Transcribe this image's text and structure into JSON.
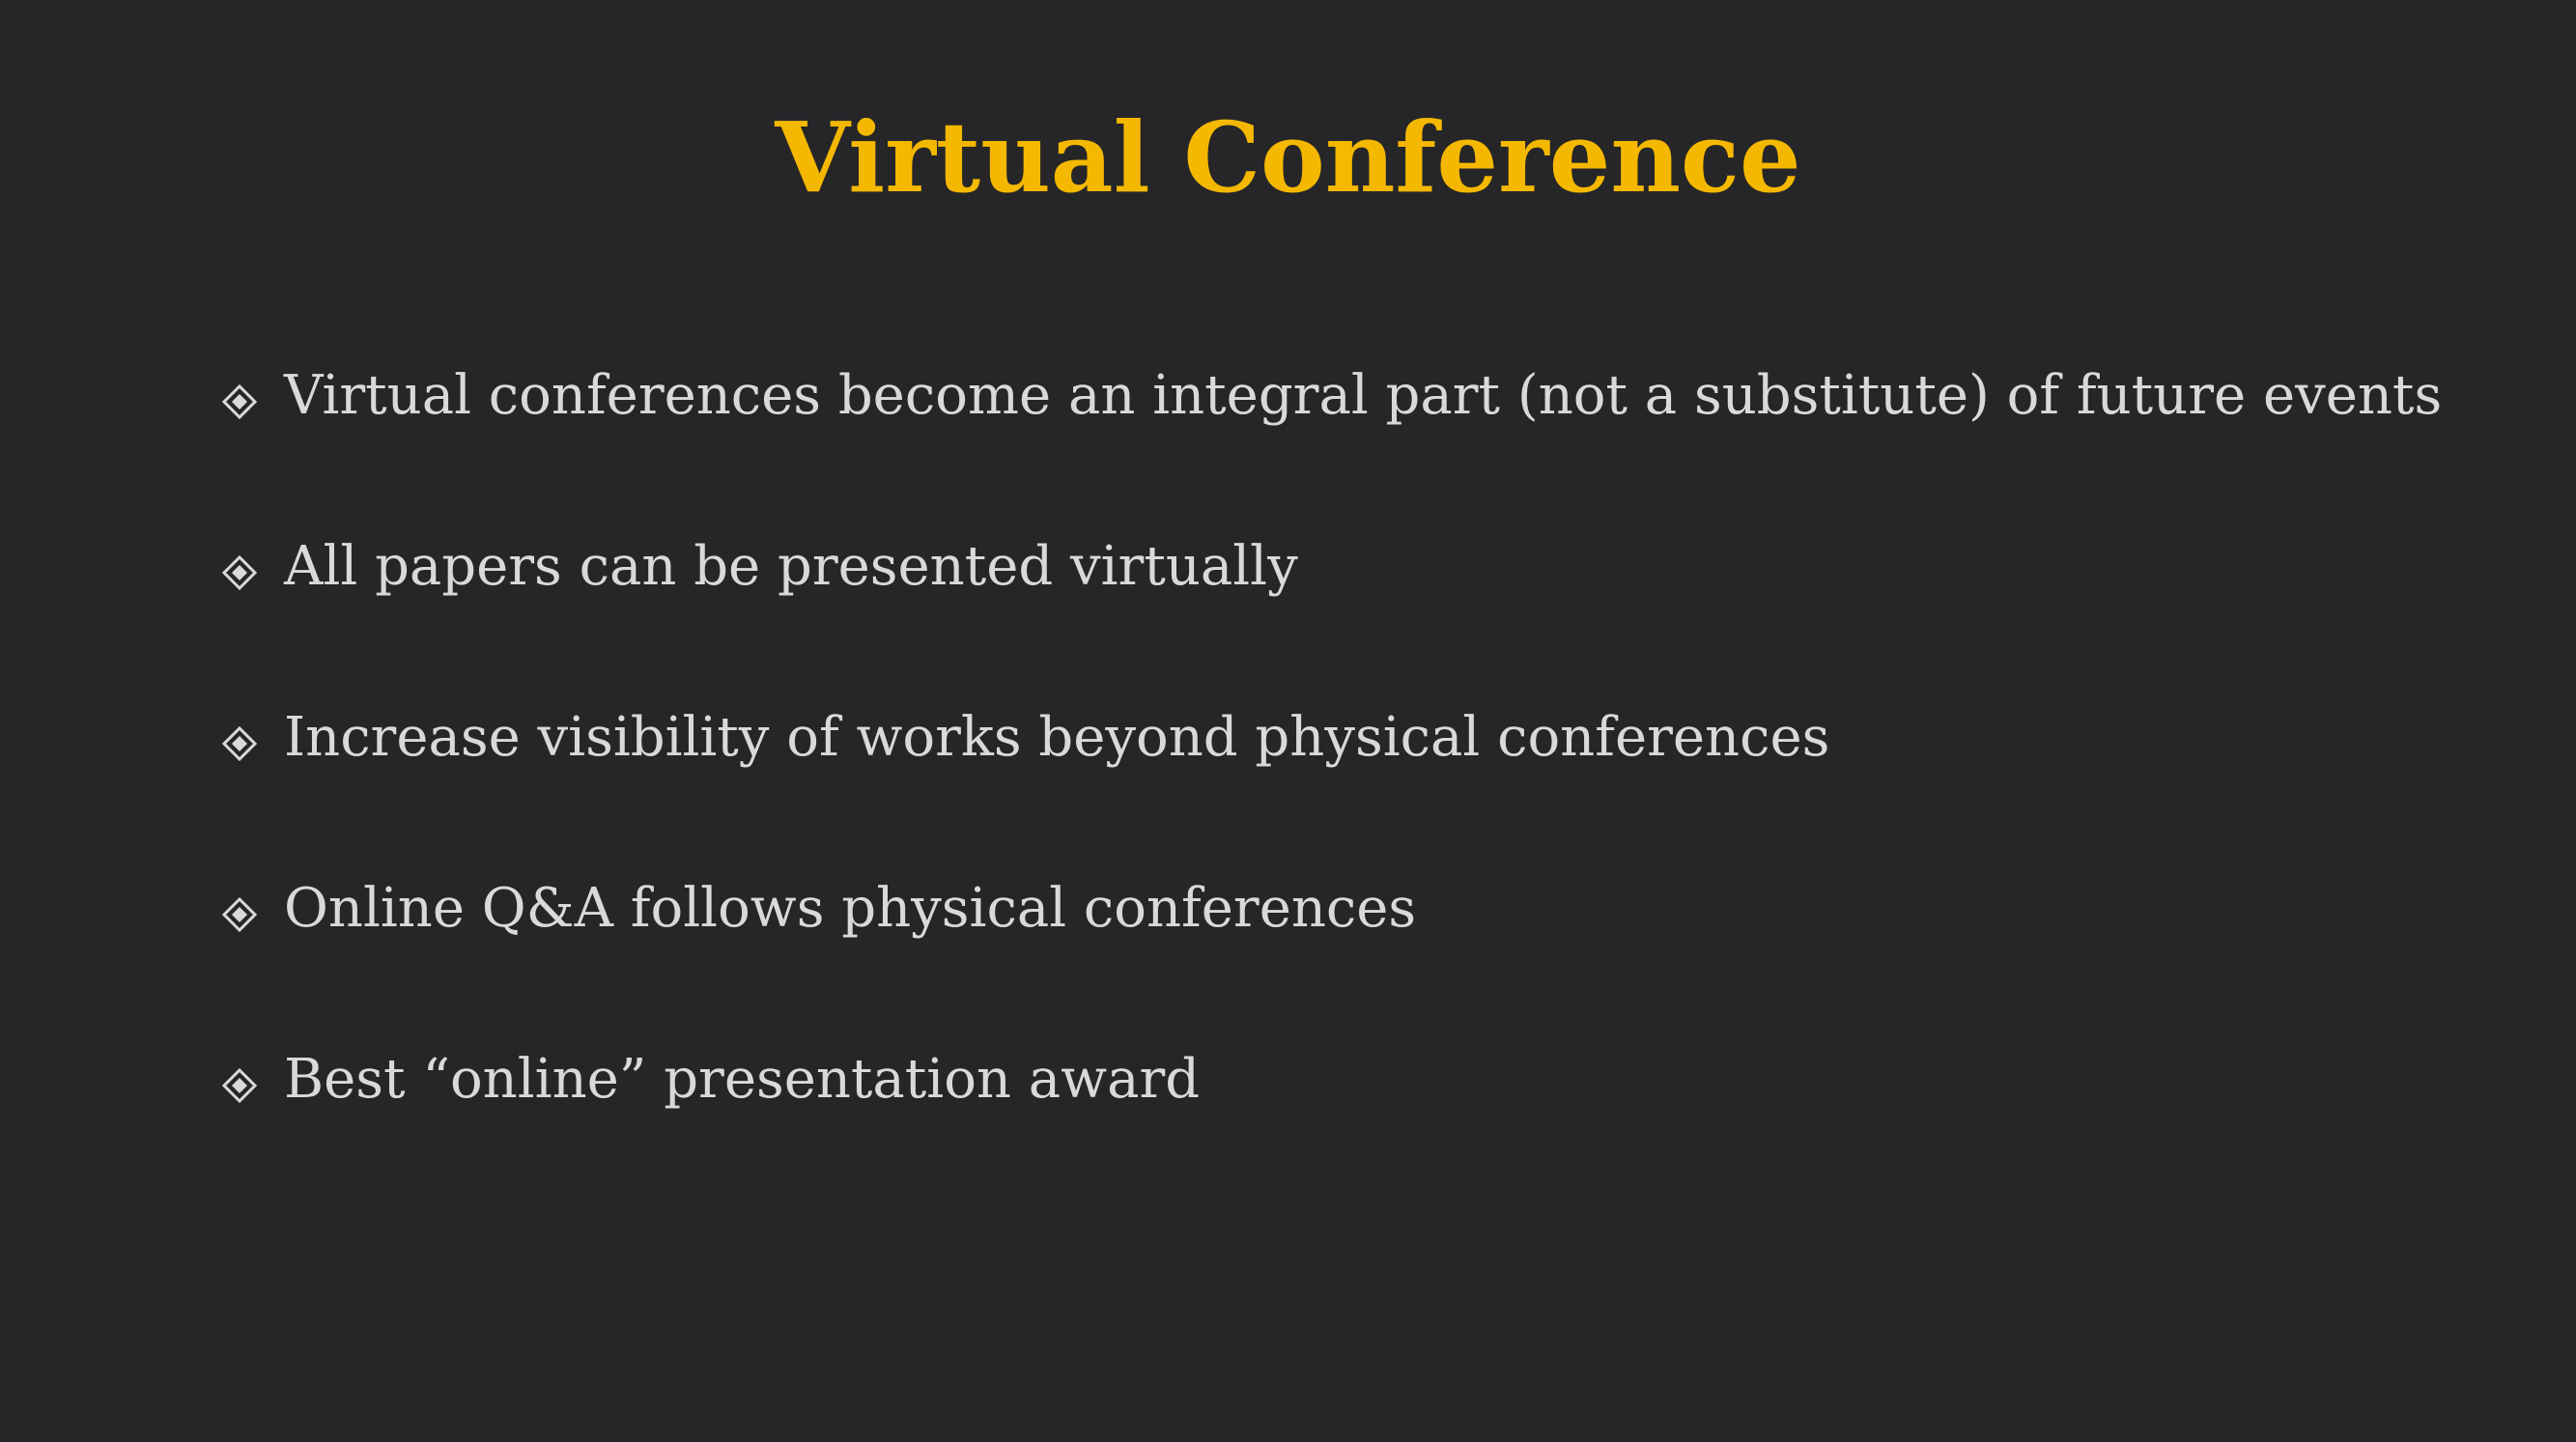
{
  "slide": {
    "title": "Virtual Conference",
    "bullets": [
      {
        "text": "Virtual conferences become an integral part (not a substitute) of future events",
        "icon": "diamond-bullet-icon"
      },
      {
        "text": "All papers can be presented virtually",
        "icon": "diamond-bullet-icon"
      },
      {
        "text": "Increase visibility of works beyond physical conferences",
        "icon": "diamond-bullet-icon"
      },
      {
        "text": "Online Q&A follows physical conferences",
        "icon": "diamond-bullet-icon"
      },
      {
        "text": "Best “online” presentation award",
        "icon": "diamond-bullet-icon"
      }
    ]
  },
  "colors": {
    "background": "#262628",
    "title": "#F5B800",
    "body_text": "#D9D9D9"
  }
}
